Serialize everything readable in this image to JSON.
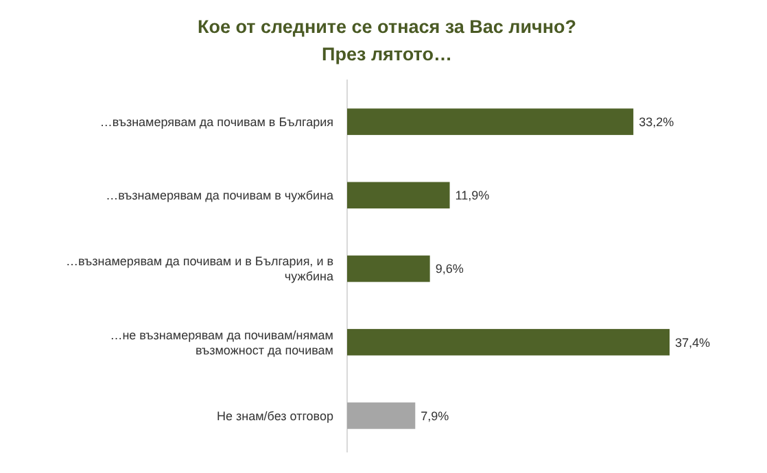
{
  "chart_data": {
    "type": "bar",
    "orientation": "horizontal",
    "title": "Кое от следните се отнася за Вас лично?\nПрез лятото…",
    "categories": [
      "…възнамерявам да почивам в България",
      "…възнамерявам да почивам в чужбина",
      "…възнамерявам да почивам и в България, и в чужбина",
      "…не възнамерявам да почивам/нямам възможност да почивам",
      "Не знам/без отговор"
    ],
    "values": [
      33.2,
      11.9,
      9.6,
      37.4,
      7.9
    ],
    "colors": [
      "#4f6228",
      "#4f6228",
      "#4f6228",
      "#4f6228",
      "#a6a6a6"
    ],
    "value_labels": [
      "33,2%",
      "11,9%",
      "9,6%",
      "37,4%",
      "7,9%"
    ],
    "grid": false
  }
}
